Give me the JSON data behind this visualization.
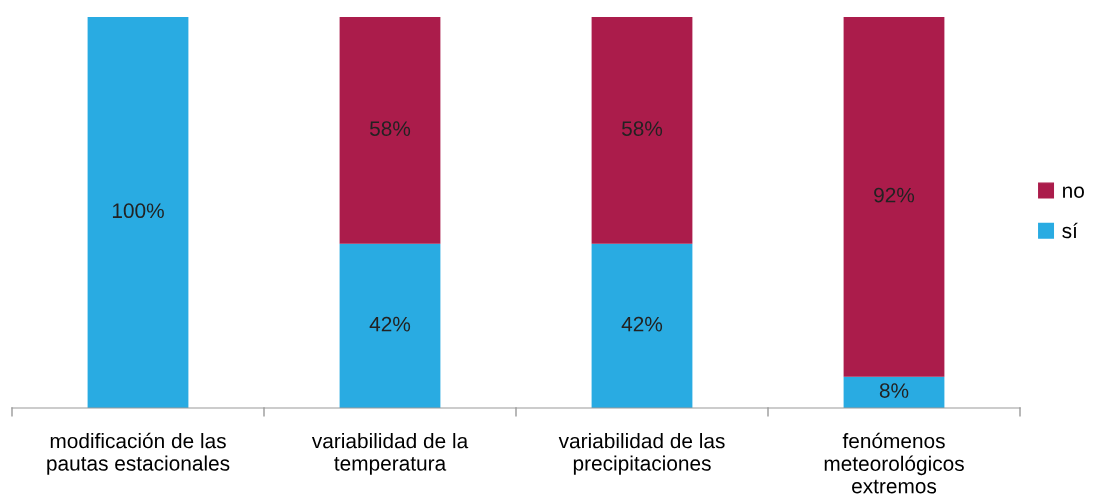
{
  "chart_data": {
    "type": "bar",
    "stacked": true,
    "categories": [
      "modificación de las\npautas estacionales",
      "variabilidad de la\ntemperatura",
      "variabilidad de las\nprecipitaciones",
      "fenómenos\nmeteorológicos\nextremos"
    ],
    "series": [
      {
        "name": "sí",
        "color": "#29abe2",
        "values": [
          100,
          42,
          42,
          8
        ],
        "value_labels": [
          "100%",
          "42%",
          "42%",
          "8%"
        ]
      },
      {
        "name": "no",
        "color": "#ab1c4b",
        "values": [
          0,
          58,
          58,
          92
        ],
        "value_labels": [
          null,
          "58%",
          "58%",
          "92%"
        ]
      }
    ],
    "ylim": [
      0,
      100
    ],
    "tick_labels": "x",
    "legend": "right",
    "grid": false
  }
}
